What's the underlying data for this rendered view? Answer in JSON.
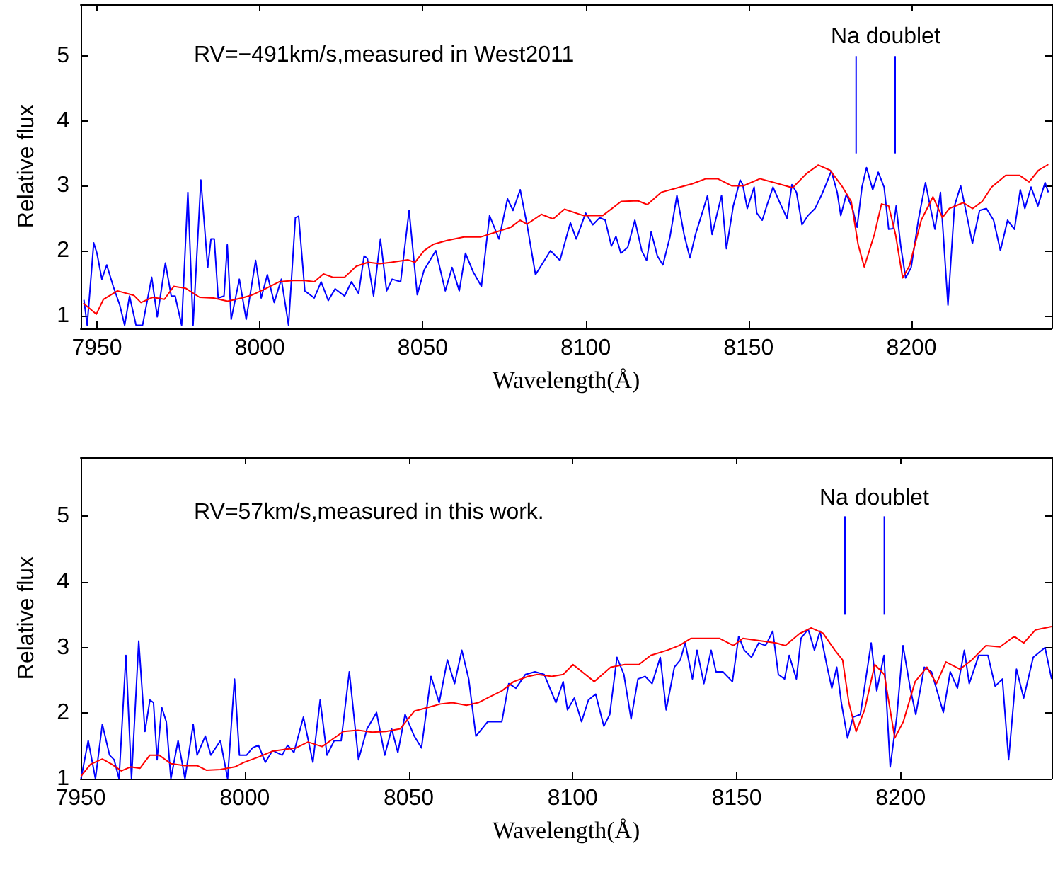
{
  "chart_data": [
    {
      "type": "line",
      "xlabel": "Wavelength(Å)",
      "ylabel": "Relative flux",
      "xlim": [
        7945,
        8243
      ],
      "ylim": [
        0.8,
        5.8
      ],
      "xticks": [
        7950,
        8000,
        8050,
        8100,
        8150,
        8200
      ],
      "yticks": [
        1,
        2,
        3,
        4,
        5
      ],
      "annotations": [
        "RV=−491km/s,measured in West2011",
        "Na doublet"
      ],
      "series": [
        {
          "color": "#0000ff",
          "x": [
            7946,
            7947,
            7949,
            7950,
            7951.5,
            7953,
            7955,
            7957,
            7958.5,
            7960,
            7962,
            7964,
            7966.8,
            7968.5,
            7971,
            7972.8,
            7974,
            7976,
            7977.9,
            7979.5,
            7981.9,
            7984,
            7985,
            7986,
            7987.2,
            7989,
            7990,
            7991.2,
            7993.7,
            7995.8,
            7998.7,
            8000.4,
            8002.3,
            8004.4,
            8006.6,
            8008.8,
            8010.9,
            8011.9,
            8013.8,
            8016.7,
            8018.8,
            8021,
            8023.1,
            8026,
            8028.1,
            8030.3,
            8032,
            8033,
            8034.9,
            8037,
            8038.9,
            8040.6,
            8043.2,
            8045.8,
            8048.3,
            8050.4,
            8054,
            8056.9,
            8059,
            8061.2,
            8063.1,
            8065.5,
            8068,
            8070.5,
            8073.4,
            8076,
            8077.7,
            8079.9,
            8082,
            8084.6,
            8089.2,
            8092.1,
            8095.3,
            8097.1,
            8100,
            8102.2,
            8104.3,
            8106,
            8107.9,
            8109.3,
            8110.8,
            8112.9,
            8115.1,
            8117.2,
            8118.7,
            8120.1,
            8122,
            8123.7,
            8125.9,
            8128,
            8130.2,
            8132,
            8133.7,
            8135.5,
            8137.4,
            8138.8,
            8140.2,
            8141.7,
            8143.2,
            8145.3,
            8147.4,
            8148.2,
            8149.6,
            8151.7,
            8152.5,
            8154.2,
            8155.7,
            8157.5,
            8159.6,
            8161.8,
            8163.3,
            8164.7,
            8166.4,
            8168.2,
            8170.4,
            8172.5,
            8174,
            8175.4,
            8177.2,
            8178.3,
            8180,
            8181.9,
            8183.3,
            8184.8,
            8186.2,
            8188.1,
            8189.8,
            8191.6,
            8193,
            8194.4,
            8195.3,
            8196.7,
            8198.2,
            8199.9,
            8202.1,
            8204.3,
            8205.7,
            8207.2,
            8208.9,
            8211.2,
            8213.2,
            8215.1,
            8217,
            8218.7,
            8220.9,
            8223,
            8225.2,
            8227.3,
            8229.5,
            8231.6,
            8233.4,
            8234.8,
            8236.7,
            8238.8,
            8241,
            8242
          ],
          "values": [
            1.24,
            0.85,
            2.12,
            1.96,
            1.56,
            1.78,
            1.45,
            1.16,
            0.85,
            1.3,
            0.85,
            0.85,
            1.59,
            0.98,
            1.81,
            1.3,
            1.3,
            0.85,
            2.9,
            0.85,
            3.09,
            1.74,
            2.18,
            2.18,
            1.27,
            1.3,
            2.09,
            0.94,
            1.56,
            0.94,
            1.85,
            1.27,
            1.63,
            1.2,
            1.56,
            0.85,
            2.51,
            2.53,
            1.38,
            1.27,
            1.52,
            1.23,
            1.41,
            1.3,
            1.52,
            1.34,
            1.92,
            1.88,
            1.3,
            2.18,
            1.38,
            1.56,
            1.52,
            2.62,
            1.32,
            1.7,
            2.0,
            1.38,
            1.74,
            1.38,
            1.96,
            1.67,
            1.45,
            2.54,
            2.18,
            2.8,
            2.62,
            2.94,
            2.4,
            1.63,
            2.0,
            1.85,
            2.43,
            2.18,
            2.58,
            2.4,
            2.51,
            2.47,
            2.07,
            2.22,
            1.96,
            2.05,
            2.47,
            2.0,
            1.85,
            2.29,
            1.92,
            1.78,
            2.22,
            2.85,
            2.25,
            1.89,
            2.25,
            2.54,
            2.85,
            2.25,
            2.54,
            2.85,
            2.03,
            2.69,
            3.09,
            3.02,
            2.65,
            2.98,
            2.58,
            2.47,
            2.71,
            2.98,
            2.74,
            2.5,
            3.02,
            2.9,
            2.4,
            2.54,
            2.65,
            2.87,
            3.05,
            3.23,
            2.9,
            2.54,
            2.87,
            2.65,
            2.36,
            2.98,
            3.28,
            2.94,
            3.21,
            2.98,
            2.33,
            2.34,
            2.69,
            2.07,
            1.58,
            1.74,
            2.47,
            3.05,
            2.69,
            2.33,
            2.9,
            1.16,
            2.69,
            3.0,
            2.54,
            2.11,
            2.62,
            2.65,
            2.47,
            2.0,
            2.47,
            2.33,
            2.94,
            2.65,
            2.98,
            2.69,
            3.05,
            2.9
          ]
        },
        {
          "color": "#ff0000",
          "x": [
            7945.8,
            7949.8,
            7952,
            7956.3,
            7961.3,
            7963.5,
            7967.1,
            7970.7,
            7973.6,
            7977.2,
            7981.5,
            7985.8,
            7990.1,
            7994.4,
            7997.3,
            8001.6,
            8005.9,
            8010.2,
            8013.8,
            8016.7,
            8019.5,
            8022.4,
            8026,
            8029.6,
            8033.2,
            8036.8,
            8040.4,
            8045.4,
            8047.6,
            8050.4,
            8053.3,
            8057.6,
            8062.6,
            8067.7,
            8072,
            8077,
            8079.9,
            8082,
            8086.4,
            8090,
            8093.5,
            8099.4,
            8105.2,
            8110.9,
            8116,
            8118.9,
            8123.2,
            8128.2,
            8132.6,
            8136.9,
            8140.5,
            8144.8,
            8148.4,
            8153.5,
            8158.5,
            8163.5,
            8167.8,
            8171.4,
            8175,
            8178.6,
            8181.5,
            8183.6,
            8185.5,
            8188.6,
            8190.8,
            8193,
            8195.1,
            8197.3,
            8199.4,
            8203,
            8206.6,
            8209.5,
            8211.6,
            8215.9,
            8218.8,
            8221.7,
            8224.6,
            8228.9,
            8233.2,
            8236.1,
            8239,
            8242
          ],
          "values": [
            1.19,
            1.02,
            1.25,
            1.38,
            1.31,
            1.2,
            1.28,
            1.25,
            1.45,
            1.42,
            1.28,
            1.27,
            1.22,
            1.27,
            1.31,
            1.41,
            1.52,
            1.54,
            1.54,
            1.52,
            1.64,
            1.59,
            1.59,
            1.76,
            1.82,
            1.8,
            1.82,
            1.86,
            1.82,
            2.0,
            2.1,
            2.16,
            2.21,
            2.21,
            2.28,
            2.36,
            2.47,
            2.41,
            2.56,
            2.49,
            2.64,
            2.54,
            2.54,
            2.76,
            2.77,
            2.71,
            2.9,
            2.97,
            3.03,
            3.11,
            3.11,
            3.0,
            3.0,
            3.11,
            3.04,
            2.97,
            3.19,
            3.32,
            3.24,
            3.0,
            2.76,
            2.1,
            1.75,
            2.25,
            2.72,
            2.69,
            2.25,
            1.58,
            1.77,
            2.47,
            2.83,
            2.51,
            2.65,
            2.74,
            2.65,
            2.76,
            2.98,
            3.16,
            3.16,
            3.06,
            3.24,
            3.33
          ]
        },
        {
          "color": "#0000ff",
          "x": [
            8183,
            8183
          ],
          "values": [
            3.5,
            5.0
          ]
        },
        {
          "color": "#0000ff",
          "x": [
            8195,
            8195
          ],
          "values": [
            3.5,
            5.0
          ]
        }
      ]
    },
    {
      "type": "line",
      "xlabel": "Wavelength(Å)",
      "ylabel": "Relative flux",
      "xlim": [
        7950,
        8246
      ],
      "ylim": [
        1,
        5.9
      ],
      "xticks": [
        7950,
        8000,
        8050,
        8100,
        8150,
        8200
      ],
      "yticks": [
        1,
        2,
        3,
        4,
        5
      ],
      "annotations": [
        "RV=57km/s,measured in this work.",
        "Na doublet"
      ],
      "series": [
        {
          "color": "#0000ff",
          "x": [
            7950.1,
            7952.3,
            7954.5,
            7956.6,
            7958.8,
            7960.2,
            7961.7,
            7963.8,
            7965.5,
            7967.7,
            7969.6,
            7971.1,
            7972.2,
            7973.3,
            7974.7,
            7976.1,
            7977.5,
            7979.7,
            7981.8,
            7984.3,
            7985.5,
            7988,
            7989.7,
            7992.6,
            7994.8,
            7996.9,
            7998.4,
            8000.6,
            8002.4,
            8004.2,
            8006.3,
            8008.5,
            8011.4,
            8013.1,
            8015,
            8017.9,
            8020.8,
            8023,
            8025.1,
            8027.3,
            8029.4,
            8031.9,
            8034.7,
            8037.3,
            8040.2,
            8042.7,
            8044.8,
            8046.7,
            8048.9,
            8051.7,
            8053.9,
            8056.8,
            8059.3,
            8061.8,
            8064,
            8066.2,
            8068.3,
            8070.5,
            8074.1,
            8078.4,
            8080.5,
            8082.7,
            8085.6,
            8088.5,
            8091.3,
            8094.9,
            8097.1,
            8098.4,
            8100.5,
            8102.7,
            8104.8,
            8107,
            8109.5,
            8111.3,
            8113.5,
            8115.6,
            8117.8,
            8119.9,
            8122.1,
            8124.2,
            8126.7,
            8128.5,
            8131,
            8132.8,
            8134.3,
            8136.5,
            8137.9,
            8140,
            8142.2,
            8143.7,
            8145.8,
            8148.7,
            8150.6,
            8152.3,
            8154.5,
            8156.7,
            8158.8,
            8161,
            8162.7,
            8164.6,
            8166,
            8168.2,
            8169.6,
            8171.8,
            8173.7,
            8175.4,
            8177.6,
            8179,
            8180.5,
            8181.9,
            8183.8,
            8185.5,
            8187.7,
            8188.7,
            8191,
            8192.7,
            8194.9,
            8196.8,
            8198.8,
            8200.7,
            8202.9,
            8204.6,
            8207.2,
            8209.4,
            8213,
            8215.1,
            8217.3,
            8219.4,
            8220.9,
            8223.8,
            8226.6,
            8228.8,
            8231,
            8232.9,
            8235.3,
            8237.5,
            8240.4,
            8244,
            8246
          ],
          "values": [
            1.0,
            1.58,
            1.0,
            1.83,
            1.36,
            1.29,
            1.0,
            2.88,
            1.0,
            3.1,
            1.72,
            2.2,
            2.16,
            1.29,
            2.09,
            1.87,
            1.0,
            1.58,
            1.0,
            1.83,
            1.36,
            1.65,
            1.36,
            1.58,
            1.0,
            2.52,
            1.36,
            1.36,
            1.47,
            1.51,
            1.25,
            1.43,
            1.36,
            1.51,
            1.4,
            1.94,
            1.25,
            2.2,
            1.36,
            1.58,
            1.58,
            2.63,
            1.29,
            1.76,
            2.01,
            1.36,
            1.76,
            1.4,
            1.98,
            1.65,
            1.47,
            2.56,
            2.16,
            2.81,
            2.45,
            2.96,
            2.52,
            1.65,
            1.87,
            1.87,
            2.45,
            2.38,
            2.59,
            2.63,
            2.59,
            2.16,
            2.48,
            2.05,
            2.23,
            1.87,
            2.2,
            2.29,
            1.8,
            1.98,
            2.85,
            2.59,
            1.91,
            2.52,
            2.56,
            2.45,
            2.85,
            2.05,
            2.7,
            2.81,
            3.07,
            2.52,
            2.96,
            2.45,
            2.96,
            2.63,
            2.63,
            2.48,
            3.17,
            2.96,
            2.85,
            3.07,
            3.03,
            3.25,
            2.59,
            2.52,
            2.88,
            2.52,
            3.14,
            3.28,
            2.96,
            3.25,
            2.7,
            2.38,
            2.7,
            2.16,
            1.62,
            1.94,
            1.98,
            2.3,
            3.07,
            2.34,
            2.88,
            1.18,
            1.94,
            3.03,
            2.38,
            1.98,
            2.7,
            2.63,
            2.01,
            2.63,
            2.38,
            2.96,
            2.45,
            2.88,
            2.88,
            2.41,
            2.52,
            1.29,
            2.67,
            2.23,
            2.85,
            3.0,
            2.52
          ]
        },
        {
          "color": "#ff0000",
          "x": [
            7950.1,
            7953,
            7956.6,
            7959.5,
            7962.4,
            7965.2,
            7968.1,
            7971.1,
            7973.9,
            7977.5,
            7981.8,
            7985.5,
            7988.3,
            7992.6,
            7997,
            7999.8,
            8004.2,
            8008.5,
            8012.8,
            8015.7,
            8019.3,
            8023.6,
            8027.3,
            8030.1,
            8034.5,
            8038.8,
            8043.1,
            8047.4,
            8051.7,
            8056.1,
            8059.7,
            8063.3,
            8067.6,
            8071.2,
            8074.8,
            8078.4,
            8082,
            8086.4,
            8089.2,
            8093.6,
            8097.1,
            8100.1,
            8106.6,
            8111.6,
            8115.9,
            8120.2,
            8123.8,
            8128.9,
            8132.5,
            8136.1,
            8140.4,
            8144.7,
            8149,
            8151.9,
            8157.7,
            8162,
            8164.8,
            8169.1,
            8172.7,
            8176.3,
            8179.9,
            8182.3,
            8184.2,
            8186.4,
            8189,
            8192.1,
            8195,
            8198.2,
            8200.8,
            8204.4,
            8208,
            8210.9,
            8213.8,
            8218.1,
            8221.7,
            8226,
            8230.3,
            8234.6,
            8237.5,
            8241.1,
            8246
          ],
          "values": [
            1.04,
            1.22,
            1.3,
            1.22,
            1.12,
            1.18,
            1.16,
            1.36,
            1.36,
            1.23,
            1.2,
            1.2,
            1.13,
            1.14,
            1.18,
            1.25,
            1.33,
            1.42,
            1.45,
            1.47,
            1.56,
            1.49,
            1.62,
            1.72,
            1.74,
            1.71,
            1.72,
            1.76,
            2.03,
            2.09,
            2.14,
            2.16,
            2.12,
            2.16,
            2.25,
            2.34,
            2.48,
            2.56,
            2.59,
            2.56,
            2.59,
            2.74,
            2.48,
            2.7,
            2.74,
            2.74,
            2.88,
            2.96,
            3.03,
            3.14,
            3.14,
            3.14,
            3.03,
            3.14,
            3.1,
            3.07,
            3.03,
            3.21,
            3.3,
            3.22,
            2.96,
            2.81,
            2.16,
            1.72,
            2.05,
            2.74,
            2.59,
            1.62,
            1.87,
            2.48,
            2.7,
            2.45,
            2.78,
            2.67,
            2.81,
            3.03,
            3.01,
            3.17,
            3.07,
            3.27,
            3.32
          ]
        },
        {
          "color": "#0000ff",
          "x": [
            8183,
            8183
          ],
          "values": [
            3.5,
            5.0
          ]
        },
        {
          "color": "#0000ff",
          "x": [
            8195,
            8195
          ],
          "values": [
            3.5,
            5.0
          ]
        }
      ]
    }
  ]
}
